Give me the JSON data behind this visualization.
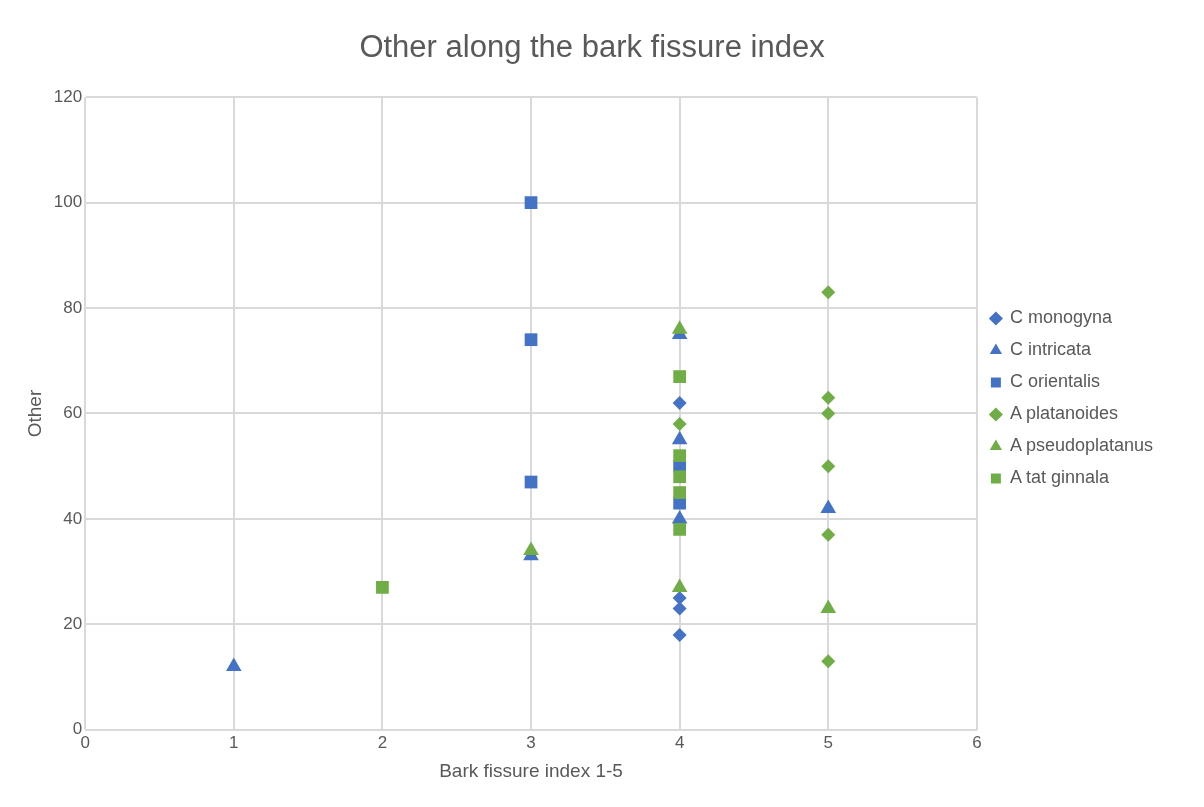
{
  "chart_data": {
    "type": "scatter",
    "title": "Other along the bark fissure index",
    "xlabel": "Bark fissure index 1-5",
    "ylabel": "Other",
    "xlim": [
      0,
      6
    ],
    "xticks": [
      0,
      1,
      2,
      3,
      4,
      5,
      6
    ],
    "ylim": [
      0,
      120
    ],
    "yticks": [
      0,
      20,
      40,
      60,
      80,
      100,
      120
    ],
    "grid": true,
    "legend": "right",
    "series": [
      {
        "name": "C monogyna",
        "color": "#4472c4",
        "marker": "diamond",
        "x": [
          4,
          4,
          4,
          4
        ],
        "values": [
          62,
          25,
          23,
          18
        ]
      },
      {
        "name": "C intricata",
        "color": "#4472c4",
        "marker": "triangle",
        "x": [
          1,
          3,
          4,
          4,
          4,
          5
        ],
        "values": [
          12,
          33,
          75,
          55,
          40,
          42
        ]
      },
      {
        "name": "C orientalis",
        "color": "#4472c4",
        "marker": "square",
        "x": [
          3,
          3,
          3,
          4,
          4
        ],
        "values": [
          100,
          74,
          47,
          50,
          43
        ]
      },
      {
        "name": "A platanoides",
        "color": "#70ad47",
        "marker": "diamond",
        "x": [
          4,
          5,
          5,
          5,
          5,
          5,
          5
        ],
        "values": [
          58,
          83,
          63,
          60,
          50,
          37,
          13
        ]
      },
      {
        "name": "A pseudoplatanus",
        "color": "#70ad47",
        "marker": "triangle",
        "x": [
          3,
          4,
          4,
          5
        ],
        "values": [
          34,
          76,
          27,
          23
        ]
      },
      {
        "name": "A tat ginnala",
        "color": "#70ad47",
        "marker": "square",
        "x": [
          2,
          4,
          4,
          4,
          4,
          4
        ],
        "values": [
          27,
          67,
          52,
          48,
          45,
          38
        ]
      }
    ]
  }
}
